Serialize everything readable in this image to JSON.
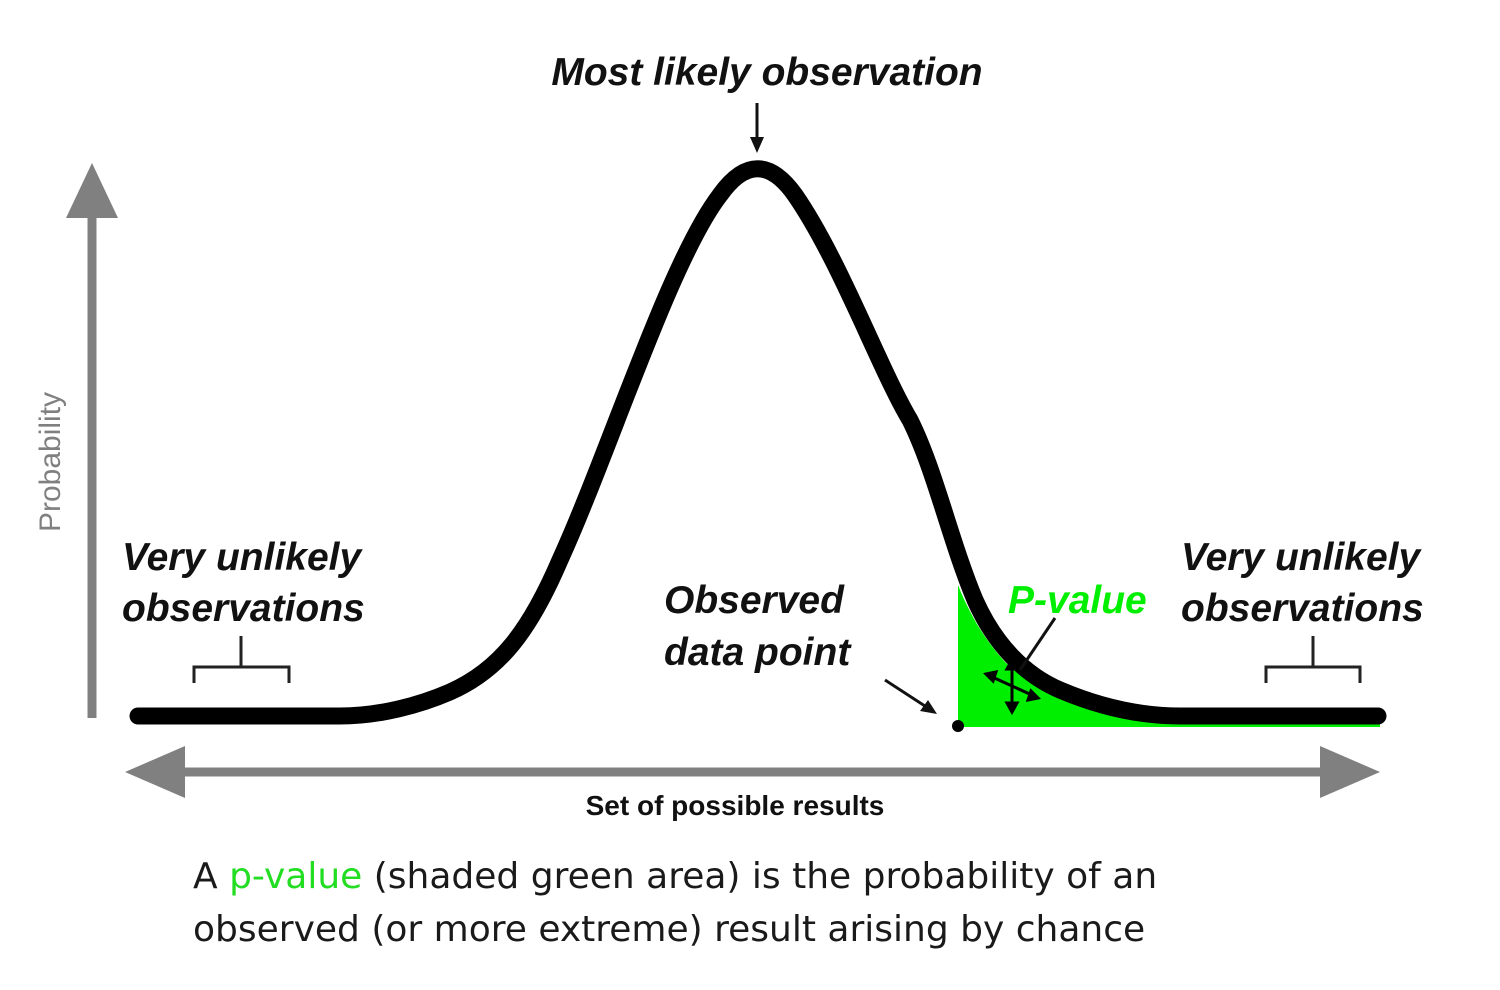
{
  "labels": {
    "peak": "Most likely observation",
    "left_tail": [
      "Very unlikely",
      "observations"
    ],
    "right_tail": [
      "Very unlikely",
      "observations"
    ],
    "observed": [
      "Observed",
      "data point"
    ],
    "pvalue": "P-value",
    "x_axis": "Set of possible results",
    "y_axis": "Probability"
  },
  "caption": {
    "prefix": "A ",
    "highlight": "p-value",
    "line1_rest": " (shaded green area) is the probability of an",
    "line2": "observed (or more extreme) result arising by chance"
  },
  "colors": {
    "curve": "#000000",
    "shade": "#00ee00",
    "axis": "#808080",
    "highlight_text": "#22dd22"
  },
  "icons": {
    "cursor": "move-cursor-icon"
  }
}
